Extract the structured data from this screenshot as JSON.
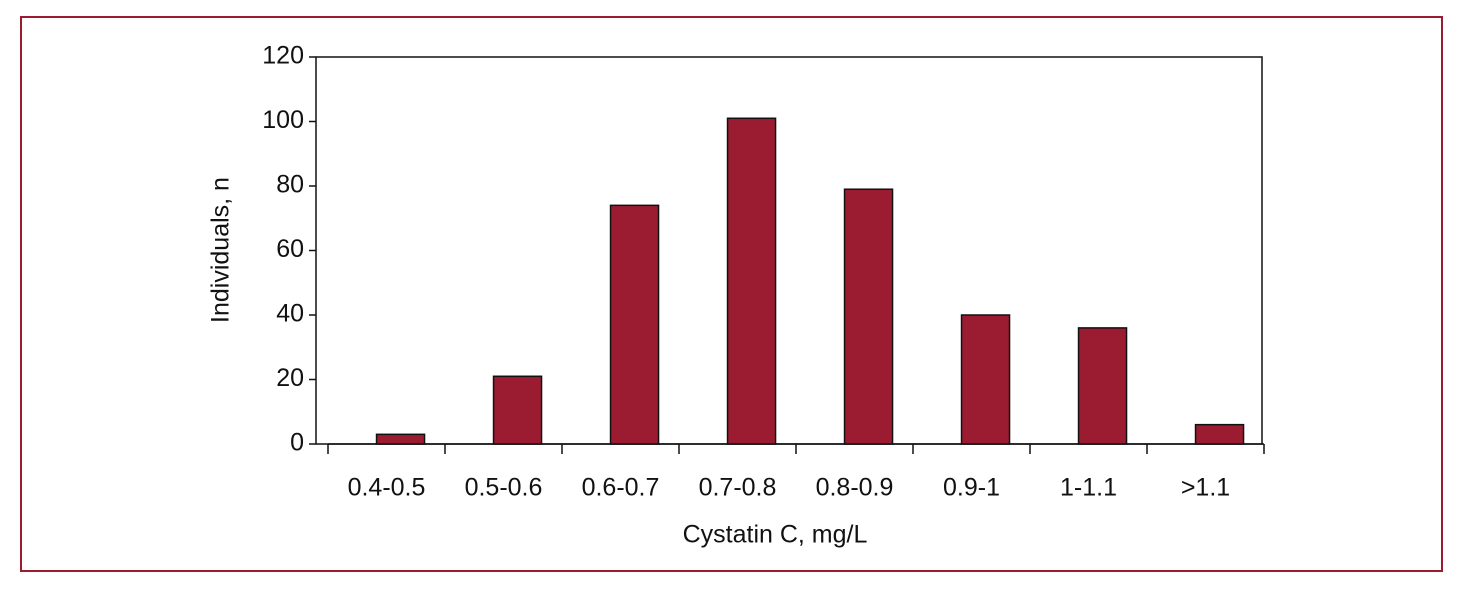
{
  "chart_data": {
    "type": "bar",
    "categories": [
      "0.4-0.5",
      "0.5-0.6",
      "0.6-0.7",
      "0.7-0.8",
      "0.8-0.9",
      "0.9-1",
      "1-1.1",
      ">1.1"
    ],
    "values": [
      3,
      21,
      74,
      101,
      79,
      40,
      36,
      6
    ],
    "color": "#9b1c31",
    "x_label": "Cystatin C, mg/L",
    "y_label": "Individuals, n",
    "ylim": [
      0,
      120
    ],
    "yticks": [
      0,
      20,
      40,
      60,
      80,
      100,
      120
    ]
  }
}
